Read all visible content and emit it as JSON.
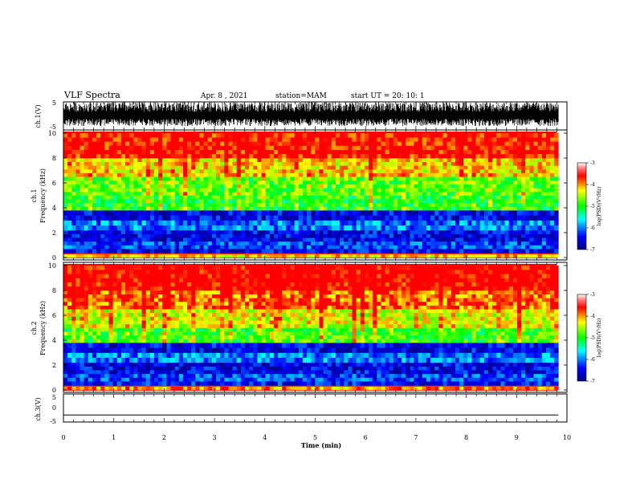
{
  "header": {
    "title": "VLF Spectra",
    "date": "Apr. 8 , 2021",
    "station": "station=MAM",
    "start": "start UT = 20: 10: 1"
  },
  "chart_data": [
    {
      "type": "line",
      "name": "ch1-waveform",
      "ylabel": "ch.1(V)",
      "ylim": [
        -5,
        5
      ],
      "yticks": [
        "5",
        "-5"
      ],
      "xlim": [
        0,
        10
      ],
      "note": "dense waveform oscillating roughly between -3.5 and +5 V"
    },
    {
      "type": "heatmap",
      "name": "ch1-spectrogram",
      "ylabel": "ch.1\nFrequency (kHz)",
      "ylabel_lines": [
        "ch.1",
        "Frequency (kHz)"
      ],
      "xlim": [
        0,
        9.83
      ],
      "ylim": [
        0,
        10
      ],
      "yticks": [
        "0",
        "2",
        "4",
        "6",
        "8",
        "10"
      ],
      "colorbar": {
        "label": "log(PSD)(V²/Hz)",
        "min": -7,
        "max": -3,
        "ticks": [
          "-3",
          "-4",
          "-5",
          "-6",
          "-7"
        ]
      },
      "freq_bands_khz": [
        0,
        0.3,
        0.7,
        1.3,
        2.2,
        3.0,
        3.8,
        5.0,
        6.5,
        8.0,
        10.0
      ],
      "band_log_psd": [
        -4.2,
        -6.5,
        -6.2,
        -6.5,
        -6.0,
        -6.5,
        -5.0,
        -4.8,
        -4.2,
        -3.6
      ]
    },
    {
      "type": "heatmap",
      "name": "ch2-spectrogram",
      "ylabel": "ch.2\nFrequency (kHz)",
      "ylabel_lines": [
        "ch.2",
        "Frequency (kHz)"
      ],
      "xlim": [
        0,
        9.83
      ],
      "ylim": [
        0,
        10
      ],
      "yticks": [
        "0",
        "2",
        "4",
        "6",
        "8",
        "10"
      ],
      "colorbar": {
        "label": "log(PSD)(V²/Hz)",
        "min": -7,
        "max": -3,
        "ticks": [
          "-3",
          "-4",
          "-5",
          "-6",
          "-7"
        ]
      },
      "freq_bands_khz": [
        0,
        0.3,
        0.7,
        1.3,
        2.2,
        3.0,
        3.8,
        5.0,
        6.5,
        8.0,
        10.0
      ],
      "band_log_psd": [
        -4.0,
        -6.4,
        -6.2,
        -6.5,
        -6.0,
        -6.5,
        -4.9,
        -4.4,
        -3.9,
        -3.5
      ]
    },
    {
      "type": "line",
      "name": "ch3-waveform",
      "ylabel": "ch.3(V)",
      "ylim": [
        -5,
        5
      ],
      "yticks": [
        "5",
        "0",
        "-5"
      ],
      "xlim": [
        0,
        10
      ],
      "series": [
        {
          "x": [
            0,
            9.83
          ],
          "values": [
            -2.5,
            -2.5
          ]
        }
      ]
    }
  ],
  "x_axis": {
    "label": "Time (min)",
    "range": [
      0,
      10
    ],
    "ticks": [
      "0",
      "1",
      "2",
      "3",
      "4",
      "5",
      "6",
      "7",
      "8",
      "9",
      "10"
    ]
  },
  "colors": {
    "colormap": [
      "#000080",
      "#0000ff",
      "#00ffff",
      "#00ff00",
      "#ffff00",
      "#ff0000",
      "#ff8080",
      "#ffffff"
    ]
  }
}
